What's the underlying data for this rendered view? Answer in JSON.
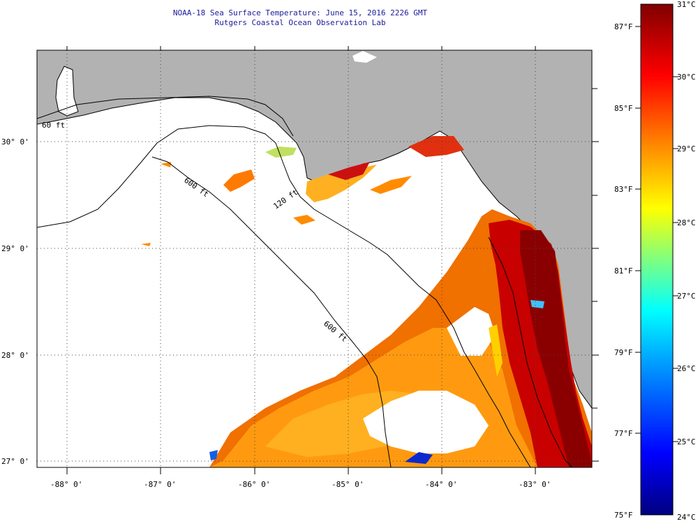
{
  "title": {
    "line1": "NOAA-18 Sea Surface Temperature:  June 15, 2016 2226 GMT",
    "line2": "Rutgers Coastal Ocean Observation Lab"
  },
  "map": {
    "lon_labels": [
      "-88° 0'",
      "-87° 0'",
      "-86° 0'",
      "-85° 0'",
      "-84° 0'",
      "-83° 0'"
    ],
    "lat_labels": [
      "30° 0'",
      "29° 0'",
      "28° 0'",
      "27° 0'"
    ],
    "isobath_labels": [
      "60 ft",
      "120 ft",
      "600 ft",
      "600 ft"
    ],
    "land_color": "#b2b2b2",
    "grid": "dotted"
  },
  "colorbar": {
    "celsius_labels": [
      "31°C",
      "30°C",
      "29°C",
      "28°C",
      "27°C",
      "26°C",
      "25°C",
      "24°C"
    ],
    "fahrenheit_labels": [
      "87°F",
      "85°F",
      "83°F",
      "81°F",
      "79°F",
      "77°F",
      "75°F"
    ],
    "range_c": [
      24,
      31
    ],
    "colors": [
      "#00007f",
      "#0000ff",
      "#00a0ff",
      "#00ffff",
      "#7fff7f",
      "#ffff00",
      "#ff8c00",
      "#ff0000",
      "#7f0000"
    ]
  }
}
